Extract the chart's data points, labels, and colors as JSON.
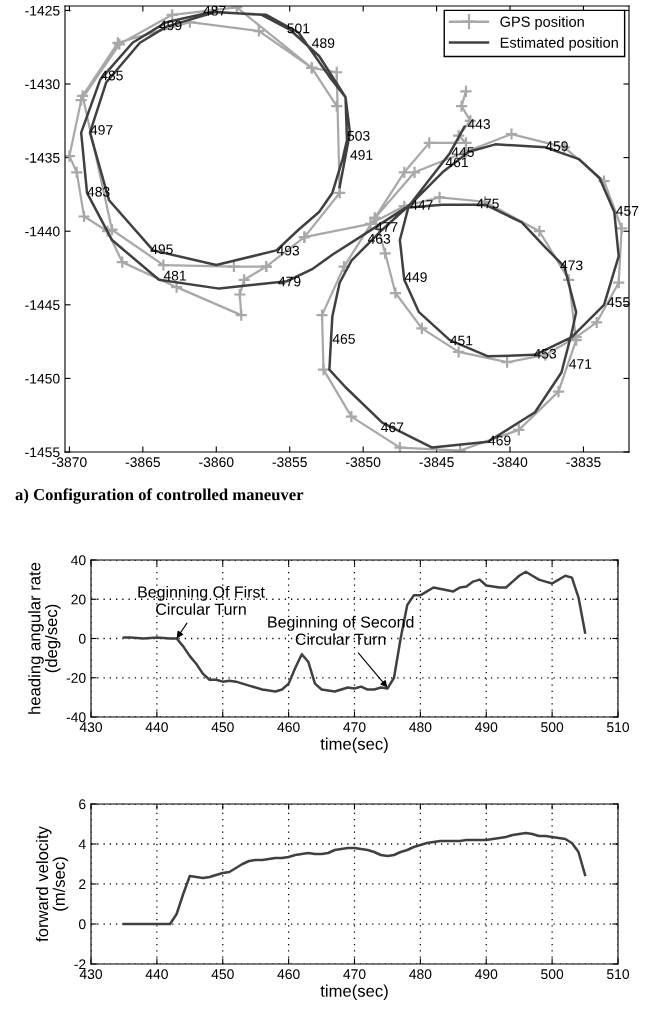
{
  "chart_data": [
    {
      "type": "line",
      "xlim": [
        -3870.3,
        -3831.9
      ],
      "ylim": [
        -1455,
        -1424.7
      ],
      "xticks": [
        -3870,
        -3865,
        -3860,
        -3855,
        -3850,
        -3845,
        -3840,
        -3835
      ],
      "yticks": [
        -1455,
        -1450,
        -1445,
        -1440,
        -1435,
        -1430,
        -1425
      ],
      "legend": "top right",
      "grid": false,
      "series": [
        {
          "name": "GPS position",
          "color": "#a8a8a8",
          "marker": "cross",
          "x": [
            -3843.0,
            -3843.3,
            -3842.7,
            -3843.5,
            -3843.0,
            -3845.5,
            -3847.2,
            -3849.2,
            -3848.5,
            -3847.8,
            -3846.0,
            -3843.5,
            -3840.2,
            -3837.6,
            -3835.5,
            -3834.1,
            -3832.6,
            -3832.4,
            -3833.6,
            -3836.3,
            -3839.9,
            -3843.0,
            -3846.5,
            -3849.2,
            -3851.3,
            -3852.8,
            -3852.7,
            -3850.8,
            -3847.5,
            -3843.4,
            -3839.4,
            -3836.7,
            -3835.5,
            -3836.0,
            -3838.0,
            -3841.7,
            -3844.8,
            -3847.2,
            -3849.5,
            -3854.0,
            -3856.6,
            -3858.1,
            -3858.4,
            -3858.3,
            -3862.7,
            -3866.4,
            -3867.4,
            -3869.0,
            -3869.5,
            -3870.0,
            -3869.2,
            -3866.6,
            -3863.0,
            -3858.6,
            -3853.5,
            -3851.8,
            -3851.6,
            -3854.0,
            -3856.6,
            -3858.8,
            -3863.6,
            -3867.1,
            -3869.1,
            -3866.7,
            -3861.8,
            -3857.1,
            -3853.5,
            -3851.8
          ],
          "values": [
            -1430.5,
            -1431.5,
            -1432.5,
            -1433.5,
            -1434.0,
            -1434.0,
            -1436.0,
            -1439.1,
            -1441.5,
            -1444.2,
            -1446.6,
            -1448.2,
            -1448.9,
            -1448.4,
            -1447.2,
            -1446.2,
            -1443.5,
            -1439.8,
            -1436.6,
            -1434.3,
            -1433.4,
            -1434.6,
            -1436.0,
            -1439.1,
            -1442.4,
            -1445.7,
            -1449.4,
            -1452.6,
            -1454.7,
            -1454.9,
            -1453.5,
            -1450.9,
            -1447.4,
            -1443.3,
            -1440.0,
            -1438.0,
            -1437.7,
            -1438.3,
            -1439.5,
            -1440.4,
            -1442.4,
            -1443.3,
            -1444.3,
            -1445.7,
            -1443.8,
            -1442.1,
            -1440.0,
            -1439.0,
            -1436.0,
            -1434.9,
            -1431.1,
            -1427.3,
            -1425.3,
            -1424.8,
            -1428.9,
            -1429.2,
            -1437.4,
            -1440.4,
            -1442.4,
            -1442.4,
            -1442.3,
            -1439.9,
            -1430.8,
            -1427.2,
            -1425.8,
            -1426.4,
            -1428.9,
            -1431.5
          ]
        },
        {
          "name": "Estimated position",
          "color": "#404040",
          "marker": "none",
          "x": [
            -3843.1,
            -3844.1,
            -3846.9,
            -3847.5,
            -3847.2,
            -3846.2,
            -3844.1,
            -3841.5,
            -3838.3,
            -3835.8,
            -3833.6,
            -3832.6,
            -3832.9,
            -3833.9,
            -3835.3,
            -3837.6,
            -3841.0,
            -3842.8,
            -3844.6,
            -3846.5,
            -3848.7,
            -3850.8,
            -3851.6,
            -3852.1,
            -3852.3,
            -3851.2,
            -3848.7,
            -3845.3,
            -3841.5,
            -3838.3,
            -3836.5,
            -3835.8,
            -3835.5,
            -3836.3,
            -3837.6,
            -3839.2,
            -3841.7,
            -3844.6,
            -3847.1,
            -3849.9,
            -3852.1,
            -3853.5,
            -3855.2,
            -3859.8,
            -3863.9,
            -3867.1,
            -3868.8,
            -3869.2,
            -3867.9,
            -3865.7,
            -3863.4,
            -3860.3,
            -3856.6,
            -3854.4,
            -3852.3,
            -3851.2,
            -3851.1,
            -3851.4,
            -3852.1,
            -3853.0,
            -3854.4,
            -3855.9,
            -3860.0,
            -3864.3,
            -3867.3,
            -3868.6,
            -3867.5,
            -3865.2,
            -3863.4,
            -3860.0,
            -3856.9,
            -3855.0,
            -3853.0,
            -3851.2,
            -3850.9,
            -3851.2,
            -3851.6
          ],
          "values": [
            -1432.9,
            -1434.7,
            -1438.3,
            -1440.6,
            -1443.3,
            -1445.5,
            -1447.4,
            -1448.5,
            -1448.4,
            -1447.2,
            -1445.0,
            -1441.7,
            -1438.7,
            -1436.4,
            -1435.1,
            -1434.3,
            -1434.1,
            -1434.6,
            -1436.0,
            -1437.9,
            -1439.9,
            -1442.0,
            -1443.5,
            -1445.8,
            -1449.4,
            -1450.6,
            -1453.0,
            -1454.7,
            -1454.3,
            -1452.3,
            -1449.6,
            -1446.9,
            -1445.5,
            -1442.4,
            -1441.1,
            -1439.4,
            -1438.2,
            -1438.2,
            -1438.4,
            -1440.2,
            -1441.6,
            -1442.6,
            -1443.4,
            -1443.9,
            -1443.3,
            -1440.6,
            -1437.4,
            -1433.3,
            -1429.7,
            -1427.2,
            -1425.8,
            -1425.1,
            -1425.3,
            -1426.5,
            -1429.5,
            -1430.9,
            -1433.8,
            -1435.1,
            -1437.4,
            -1438.7,
            -1439.9,
            -1441.3,
            -1442.3,
            -1441.3,
            -1437.9,
            -1433.3,
            -1429.9,
            -1427.2,
            -1426.1,
            -1425.1,
            -1425.3,
            -1426.3,
            -1428.1,
            -1430.9,
            -1433.3,
            -1434.9,
            -1437.0
          ]
        }
      ],
      "annotations": [
        {
          "text": "487",
          "x": -3860.9,
          "y": -1425.1
        },
        {
          "text": "499",
          "x": -3863.9,
          "y": -1426.1
        },
        {
          "text": "501",
          "x": -3855.2,
          "y": -1426.3
        },
        {
          "text": "489",
          "x": -3853.5,
          "y": -1427.3
        },
        {
          "text": "485",
          "x": -3867.9,
          "y": -1429.5
        },
        {
          "text": "497",
          "x": -3868.6,
          "y": -1433.2
        },
        {
          "text": "503",
          "x": -3851.1,
          "y": -1433.6
        },
        {
          "text": "491",
          "x": -3850.9,
          "y": -1434.9
        },
        {
          "text": "483",
          "x": -3868.8,
          "y": -1437.4
        },
        {
          "text": "495",
          "x": -3864.5,
          "y": -1441.3
        },
        {
          "text": "493",
          "x": -3855.9,
          "y": -1441.4
        },
        {
          "text": "481",
          "x": -3863.6,
          "y": -1443.1
        },
        {
          "text": "479",
          "x": -3855.8,
          "y": -1443.5
        },
        {
          "text": "443",
          "x": -3842.9,
          "y": -1432.8
        },
        {
          "text": "445",
          "x": -3844.0,
          "y": -1434.7
        },
        {
          "text": "461",
          "x": -3844.4,
          "y": -1435.4
        },
        {
          "text": "459",
          "x": -3837.6,
          "y": -1434.3
        },
        {
          "text": "447",
          "x": -3846.8,
          "y": -1438.3
        },
        {
          "text": "475",
          "x": -3842.3,
          "y": -1438.2
        },
        {
          "text": "457",
          "x": -3832.8,
          "y": -1438.7
        },
        {
          "text": "477",
          "x": -3849.2,
          "y": -1439.8
        },
        {
          "text": "463",
          "x": -3849.7,
          "y": -1440.6
        },
        {
          "text": "473",
          "x": -3836.6,
          "y": -1442.4
        },
        {
          "text": "449",
          "x": -3847.2,
          "y": -1443.2
        },
        {
          "text": "455",
          "x": -3833.4,
          "y": -1444.9
        },
        {
          "text": "465",
          "x": -3852.1,
          "y": -1447.4
        },
        {
          "text": "451",
          "x": -3844.1,
          "y": -1447.5
        },
        {
          "text": "453",
          "x": -3838.4,
          "y": -1448.4
        },
        {
          "text": "471",
          "x": -3836.0,
          "y": -1449.1
        },
        {
          "text": "467",
          "x": -3848.8,
          "y": -1453.4
        },
        {
          "text": "469",
          "x": -3841.5,
          "y": -1454.3
        },
        "a) Configuration of controlled maneuver"
      ]
    },
    {
      "type": "line",
      "xlabel": "time(sec)",
      "ylabel": "heading angular rate\n(deg/sec)",
      "xlim": [
        430,
        510
      ],
      "ylim": [
        -40,
        40
      ],
      "xticks": [
        430,
        440,
        450,
        460,
        470,
        480,
        490,
        500,
        510
      ],
      "yticks": [
        -40,
        -20,
        0,
        20,
        40
      ],
      "grid": true,
      "x": [
        435,
        436,
        438,
        440,
        442,
        443,
        444,
        445,
        446,
        447,
        448,
        449,
        450,
        451,
        452,
        454,
        456,
        458,
        459,
        460,
        461,
        462,
        463,
        464,
        465,
        467,
        469,
        470,
        471,
        472,
        473,
        474,
        475,
        476,
        477,
        478,
        479,
        480,
        481,
        482,
        485,
        486,
        487,
        488,
        489,
        490,
        492,
        493,
        494,
        495,
        496,
        497,
        498,
        499,
        500,
        501,
        502,
        503,
        504,
        505
      ],
      "series": [
        {
          "color": "#404040",
          "values": [
            0.5,
            0.5,
            0,
            0.5,
            0,
            0,
            -4,
            -9,
            -13,
            -18,
            -21,
            -21,
            -22,
            -21.5,
            -22,
            -24,
            -26,
            -27,
            -26,
            -23,
            -15,
            -8,
            -12,
            -23,
            -26,
            -27,
            -25,
            -25.5,
            -24.5,
            -26,
            -26,
            -25,
            -25.5,
            -20,
            0,
            17,
            22,
            22,
            24,
            26,
            24,
            26,
            26.5,
            29,
            30,
            27,
            26,
            26,
            29,
            32,
            34,
            32,
            30,
            29,
            28,
            30,
            32,
            31,
            21,
            3
          ]
        }
      ],
      "annotations": [
        {
          "text": "Beginning Of First\nCircular Turn",
          "x": 443,
          "y": 0
        },
        {
          "text": "Beginning of Second\nCircular Turn",
          "x": 475,
          "y": -25
        }
      ]
    },
    {
      "type": "line",
      "xlabel": "time(sec)",
      "ylabel": "forward velocity\n(m/sec)",
      "xlim": [
        430,
        510
      ],
      "ylim": [
        -2,
        6
      ],
      "xticks": [
        430,
        440,
        450,
        460,
        470,
        480,
        490,
        500,
        510
      ],
      "yticks": [
        -2,
        0,
        2,
        4,
        6
      ],
      "grid": true,
      "x": [
        435,
        442,
        443,
        444,
        445,
        446,
        447,
        448,
        449,
        450,
        451,
        452,
        453,
        454,
        455,
        456,
        457,
        458,
        459,
        460,
        461,
        462,
        463,
        464,
        465,
        466,
        467,
        468,
        469,
        470,
        471,
        472,
        473,
        474,
        475,
        476,
        477,
        478,
        479,
        480,
        481,
        482,
        483,
        485,
        486,
        487,
        489,
        490,
        491,
        492,
        493,
        494,
        495,
        496,
        497,
        498,
        499,
        500,
        501,
        502,
        503,
        504,
        505
      ],
      "series": [
        {
          "color": "#404040",
          "values": [
            0,
            0,
            0.5,
            1.5,
            2.4,
            2.35,
            2.3,
            2.35,
            2.45,
            2.55,
            2.6,
            2.8,
            3.0,
            3.15,
            3.2,
            3.2,
            3.25,
            3.3,
            3.3,
            3.35,
            3.45,
            3.5,
            3.55,
            3.5,
            3.5,
            3.55,
            3.7,
            3.75,
            3.8,
            3.8,
            3.75,
            3.7,
            3.6,
            3.45,
            3.4,
            3.45,
            3.6,
            3.7,
            3.85,
            3.95,
            4.05,
            4.1,
            4.15,
            4.15,
            4.15,
            4.2,
            4.2,
            4.2,
            4.25,
            4.3,
            4.35,
            4.45,
            4.5,
            4.55,
            4.5,
            4.4,
            4.4,
            4.35,
            4.3,
            4.25,
            4.05,
            3.6,
            2.45
          ]
        }
      ]
    }
  ]
}
